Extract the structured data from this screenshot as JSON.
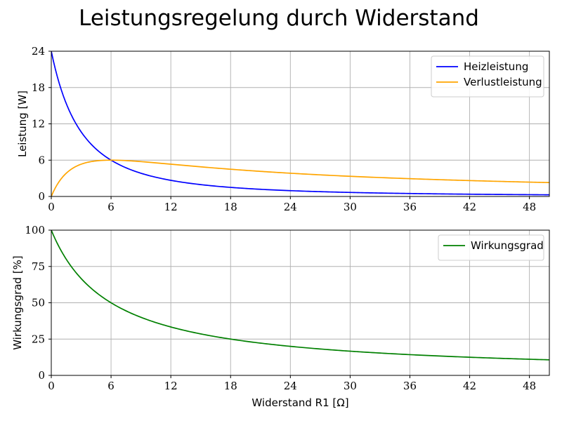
{
  "figure": {
    "title": "Leistungsregelung durch Widerstand"
  },
  "chart_data": [
    {
      "type": "line",
      "id": "top",
      "ylabel": "Leistung [W]",
      "xlabel": "",
      "xlim": [
        0,
        50
      ],
      "ylim": [
        0,
        24
      ],
      "xticks": [
        0,
        6,
        12,
        18,
        24,
        30,
        36,
        42,
        48
      ],
      "yticks": [
        0,
        6,
        12,
        18,
        24
      ],
      "grid": true,
      "legend": "top-right",
      "x": [
        0,
        1,
        2,
        3,
        4,
        6,
        8,
        10,
        12,
        15,
        18,
        24,
        30,
        36,
        42,
        48,
        50
      ],
      "series": [
        {
          "name": "Heizleistung",
          "color": "#0000ff",
          "values": [
            24.0,
            17.63,
            13.5,
            10.67,
            8.64,
            6.0,
            4.41,
            3.38,
            2.67,
            1.96,
            1.5,
            0.96,
            0.67,
            0.49,
            0.38,
            0.29,
            0.27
          ]
        },
        {
          "name": "Verlustleistung",
          "color": "#ffa500",
          "values": [
            0.0,
            2.94,
            4.5,
            5.33,
            5.76,
            6.0,
            5.88,
            5.63,
            5.33,
            4.9,
            4.5,
            3.84,
            3.33,
            2.94,
            2.63,
            2.37,
            2.28
          ]
        }
      ]
    },
    {
      "type": "line",
      "id": "bottom",
      "ylabel": "Wirkungsgrad [%]",
      "xlabel": "Widerstand R1 [Ω]",
      "xlim": [
        0,
        50
      ],
      "ylim": [
        0,
        100
      ],
      "xticks": [
        0,
        6,
        12,
        18,
        24,
        30,
        36,
        42,
        48
      ],
      "yticks": [
        0,
        25,
        50,
        75,
        100
      ],
      "grid": true,
      "legend": "top-right",
      "x": [
        0,
        1,
        2,
        3,
        4,
        6,
        8,
        10,
        12,
        15,
        18,
        24,
        30,
        36,
        42,
        48,
        50
      ],
      "series": [
        {
          "name": "Wirkungsgrad",
          "color": "#008000",
          "values": [
            100.0,
            85.71,
            75.0,
            66.67,
            60.0,
            50.0,
            42.86,
            37.5,
            33.33,
            28.57,
            25.0,
            20.0,
            16.67,
            14.29,
            12.5,
            11.11,
            10.71
          ]
        }
      ]
    }
  ]
}
